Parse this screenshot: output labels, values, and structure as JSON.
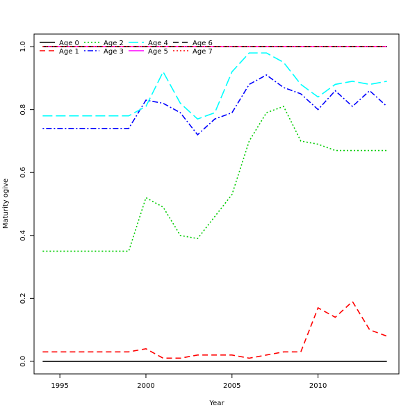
{
  "chart_data": {
    "type": "line",
    "title": "",
    "xlabel": "Year",
    "ylabel": "Maturity ogive",
    "xlim": [
      1993.5,
      2014.7
    ],
    "ylim": [
      -0.04,
      1.04
    ],
    "xticks": [
      1995,
      2000,
      2005,
      2010
    ],
    "yticks": [
      0.0,
      0.2,
      0.4,
      0.6,
      0.8,
      1.0
    ],
    "xtick_labels": [
      "1995",
      "2000",
      "2005",
      "2010"
    ],
    "ytick_labels": [
      "0.0",
      "0.2",
      "0.4",
      "0.6",
      "0.8",
      "1.0"
    ],
    "grid": false,
    "legend_position": "top-left",
    "x": [
      1994,
      1995,
      1996,
      1997,
      1998,
      1999,
      2000,
      2001,
      2002,
      2003,
      2004,
      2005,
      2006,
      2007,
      2008,
      2009,
      2010,
      2011,
      2012,
      2013,
      2014
    ],
    "series": [
      {
        "name": "Age 0",
        "color": "#000000",
        "dash": "solid",
        "values": [
          0,
          0,
          0,
          0,
          0,
          0,
          0,
          0,
          0,
          0,
          0,
          0,
          0,
          0,
          0,
          0,
          0,
          0,
          0,
          0,
          0
        ]
      },
      {
        "name": "Age 1",
        "color": "#ff0000",
        "dash": "8,5",
        "values": [
          0.03,
          0.03,
          0.03,
          0.03,
          0.03,
          0.03,
          0.04,
          0.01,
          0.01,
          0.02,
          0.02,
          0.02,
          0.01,
          0.02,
          0.03,
          0.03,
          0.17,
          0.14,
          0.19,
          0.1,
          0.08
        ]
      },
      {
        "name": "Age 2",
        "color": "#00cc00",
        "dash": "2,3",
        "values": [
          0.35,
          0.35,
          0.35,
          0.35,
          0.35,
          0.35,
          0.52,
          0.49,
          0.4,
          0.39,
          0.46,
          0.53,
          0.7,
          0.79,
          0.81,
          0.7,
          0.69,
          0.67,
          0.67,
          0.67,
          0.67
        ]
      },
      {
        "name": "Age 3",
        "color": "#0000ff",
        "dash": "2,3,8,3",
        "values": [
          0.74,
          0.74,
          0.74,
          0.74,
          0.74,
          0.74,
          0.83,
          0.82,
          0.79,
          0.72,
          0.77,
          0.79,
          0.88,
          0.91,
          0.87,
          0.85,
          0.8,
          0.86,
          0.81,
          0.86,
          0.81
        ]
      },
      {
        "name": "Age 4",
        "color": "#00ffff",
        "dash": "14,5",
        "values": [
          0.78,
          0.78,
          0.78,
          0.78,
          0.78,
          0.78,
          0.81,
          0.92,
          0.82,
          0.77,
          0.79,
          0.92,
          0.98,
          0.98,
          0.95,
          0.88,
          0.84,
          0.88,
          0.89,
          0.88,
          0.89
        ]
      },
      {
        "name": "Age 5",
        "color": "#ff00ff",
        "dash": "solid",
        "values": [
          1,
          1,
          1,
          1,
          1,
          1,
          1,
          1,
          1,
          1,
          1,
          1,
          1,
          1,
          1,
          1,
          1,
          1,
          1,
          1,
          1
        ]
      },
      {
        "name": "Age 6",
        "color": "#000000",
        "dash": "8,5",
        "values": [
          1,
          1,
          1,
          1,
          1,
          1,
          1,
          1,
          1,
          1,
          1,
          1,
          1,
          1,
          1,
          1,
          1,
          1,
          1,
          1,
          1
        ]
      },
      {
        "name": "Age 7",
        "color": "#ff0000",
        "dash": "2,3",
        "values": [
          1,
          1,
          1,
          1,
          1,
          1,
          1,
          1,
          1,
          1,
          1,
          1,
          1,
          1,
          1,
          1,
          1,
          1,
          1,
          1,
          1
        ]
      }
    ]
  }
}
